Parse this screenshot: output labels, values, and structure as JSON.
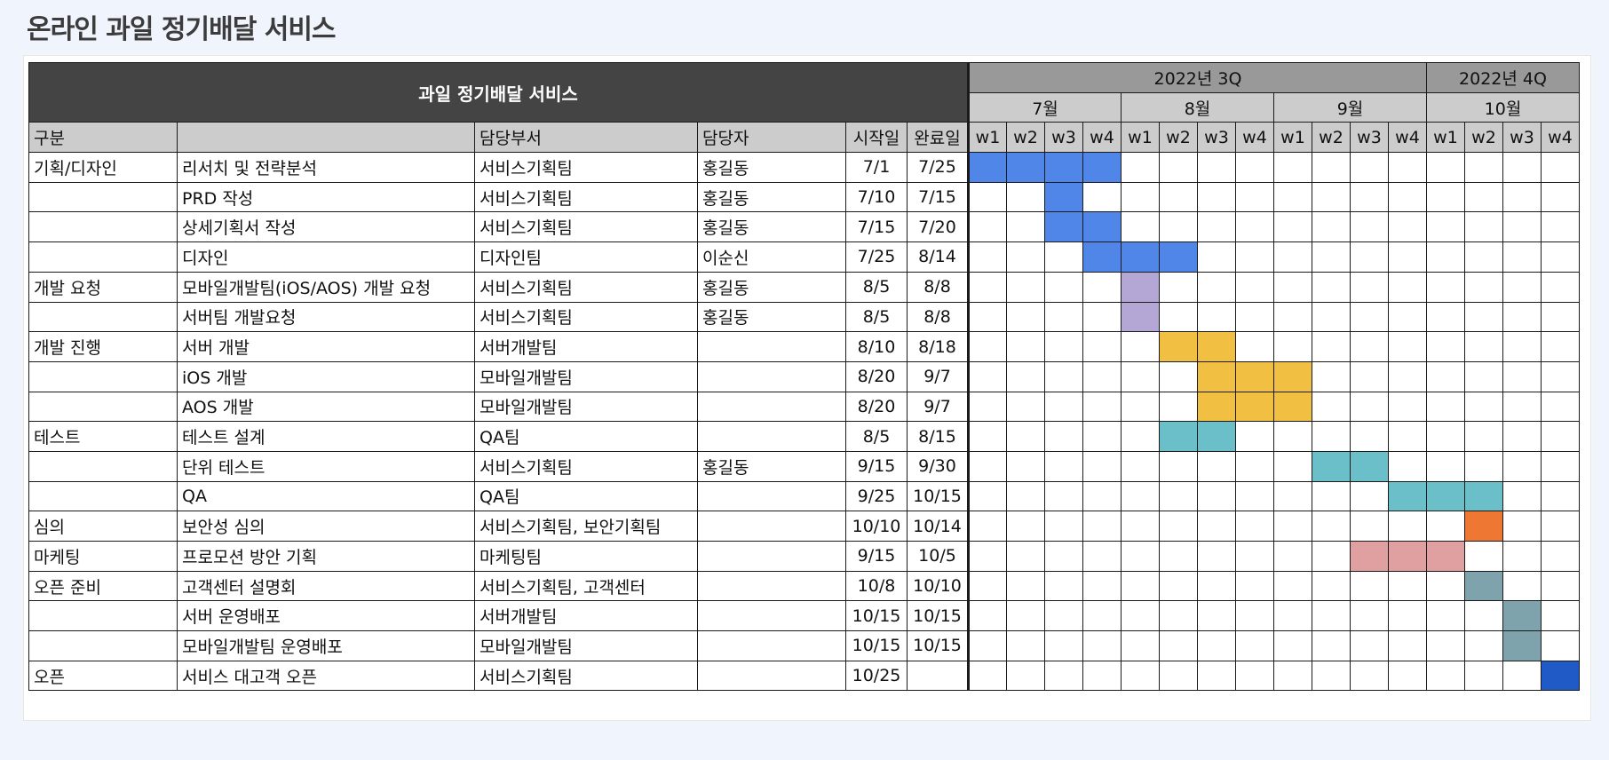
{
  "page": {
    "title": "온라인 과일 정기배달 서비스"
  },
  "table": {
    "project_title": "과일 정기배달 서비스",
    "quarters": [
      {
        "label": "2022년 3Q",
        "span": 12
      },
      {
        "label": "2022년 4Q",
        "span": 4
      }
    ],
    "months": [
      {
        "label": "7월",
        "span": 4
      },
      {
        "label": "8월",
        "span": 4
      },
      {
        "label": "9월",
        "span": 4
      },
      {
        "label": "10월",
        "span": 4
      }
    ],
    "columns": {
      "category": "구분",
      "task": "",
      "department": "담당부서",
      "owner": "담당자",
      "start": "시작일",
      "end": "완료일"
    },
    "weeks": [
      "w1",
      "w2",
      "w3",
      "w4",
      "w1",
      "w2",
      "w3",
      "w4",
      "w1",
      "w2",
      "w3",
      "w4",
      "w1",
      "w2",
      "w3",
      "w4"
    ],
    "colors": {
      "blue": "#4f86e8",
      "purple": "#b4a7d6",
      "yellow": "#f1bf42",
      "teal": "#6abfc9",
      "orange": "#ee7733",
      "pink": "#e0a0a2",
      "slate": "#7fa3ad",
      "navy": "#1f5ac7"
    },
    "rows": [
      {
        "category": "기획/디자인",
        "task": "리서치 및 전략분석",
        "department": "서비스기획팀",
        "owner": "홍길동",
        "start": "7/1",
        "end": "7/25",
        "bar": {
          "from": 0,
          "to": 3,
          "color": "blue"
        }
      },
      {
        "category": "",
        "task": "PRD 작성",
        "department": "서비스기획팀",
        "owner": "홍길동",
        "start": "7/10",
        "end": "7/15",
        "bar": {
          "from": 2,
          "to": 2,
          "color": "blue"
        }
      },
      {
        "category": "",
        "task": "상세기획서 작성",
        "department": "서비스기획팀",
        "owner": "홍길동",
        "start": "7/15",
        "end": "7/20",
        "bar": {
          "from": 2,
          "to": 3,
          "color": "blue"
        }
      },
      {
        "category": "",
        "task": "디자인",
        "department": "디자인팀",
        "owner": "이순신",
        "start": "7/25",
        "end": "8/14",
        "bar": {
          "from": 3,
          "to": 5,
          "color": "blue"
        }
      },
      {
        "category": "개발 요청",
        "task": "모바일개발팀(iOS/AOS) 개발 요청",
        "department": "서비스기획팀",
        "owner": "홍길동",
        "start": "8/5",
        "end": "8/8",
        "bar": {
          "from": 4,
          "to": 4,
          "color": "purple"
        }
      },
      {
        "category": "",
        "task": "서버팀 개발요청",
        "department": "서비스기획팀",
        "owner": "홍길동",
        "start": "8/5",
        "end": "8/8",
        "bar": {
          "from": 4,
          "to": 4,
          "color": "purple"
        }
      },
      {
        "category": "개발 진행",
        "task": "서버 개발",
        "department": "서버개발팀",
        "owner": "",
        "start": "8/10",
        "end": "8/18",
        "bar": {
          "from": 5,
          "to": 6,
          "color": "yellow"
        }
      },
      {
        "category": "",
        "task": "iOS 개발",
        "department": "모바일개발팀",
        "owner": "",
        "start": "8/20",
        "end": "9/7",
        "bar": {
          "from": 6,
          "to": 8,
          "color": "yellow"
        }
      },
      {
        "category": "",
        "task": "AOS 개발",
        "department": "모바일개발팀",
        "owner": "",
        "start": "8/20",
        "end": "9/7",
        "bar": {
          "from": 6,
          "to": 8,
          "color": "yellow"
        }
      },
      {
        "category": "테스트",
        "task": "테스트 설계",
        "department": "QA팀",
        "owner": "",
        "start": "8/5",
        "end": "8/15",
        "bar": {
          "from": 5,
          "to": 6,
          "color": "teal"
        }
      },
      {
        "category": "",
        "task": "단위 테스트",
        "department": "서비스기획팀",
        "owner": "홍길동",
        "start": "9/15",
        "end": "9/30",
        "bar": {
          "from": 9,
          "to": 10,
          "color": "teal"
        }
      },
      {
        "category": "",
        "task": "QA",
        "department": "QA팀",
        "owner": "",
        "start": "9/25",
        "end": "10/15",
        "bar": {
          "from": 11,
          "to": 13,
          "color": "teal"
        }
      },
      {
        "category": "심의",
        "task": "보안성 심의",
        "department": "서비스기획팀, 보안기획팀",
        "owner": "",
        "start": "10/10",
        "end": "10/14",
        "bar": {
          "from": 13,
          "to": 13,
          "color": "orange"
        }
      },
      {
        "category": "마케팅",
        "task": "프로모션 방안 기획",
        "department": "마케팅팀",
        "owner": "",
        "start": "9/15",
        "end": "10/5",
        "bar": {
          "from": 10,
          "to": 12,
          "color": "pink"
        }
      },
      {
        "category": "오픈 준비",
        "task": "고객센터 설명회",
        "department": "서비스기획팀, 고객센터",
        "owner": "",
        "start": "10/8",
        "end": "10/10",
        "bar": {
          "from": 13,
          "to": 13,
          "color": "slate"
        }
      },
      {
        "category": "",
        "task": "서버 운영배포",
        "department": "서버개발팀",
        "owner": "",
        "start": "10/15",
        "end": "10/15",
        "bar": {
          "from": 14,
          "to": 14,
          "color": "slate"
        }
      },
      {
        "category": "",
        "task": "모바일개발팀 운영배포",
        "department": "모바일개발팀",
        "owner": "",
        "start": "10/15",
        "end": "10/15",
        "bar": {
          "from": 14,
          "to": 14,
          "color": "slate"
        }
      },
      {
        "category": "오픈",
        "task": "서비스 대고객 오픈",
        "department": "서비스기획팀",
        "owner": "",
        "start": "10/25",
        "end": "",
        "bar": {
          "from": 15,
          "to": 15,
          "color": "navy"
        }
      }
    ]
  }
}
